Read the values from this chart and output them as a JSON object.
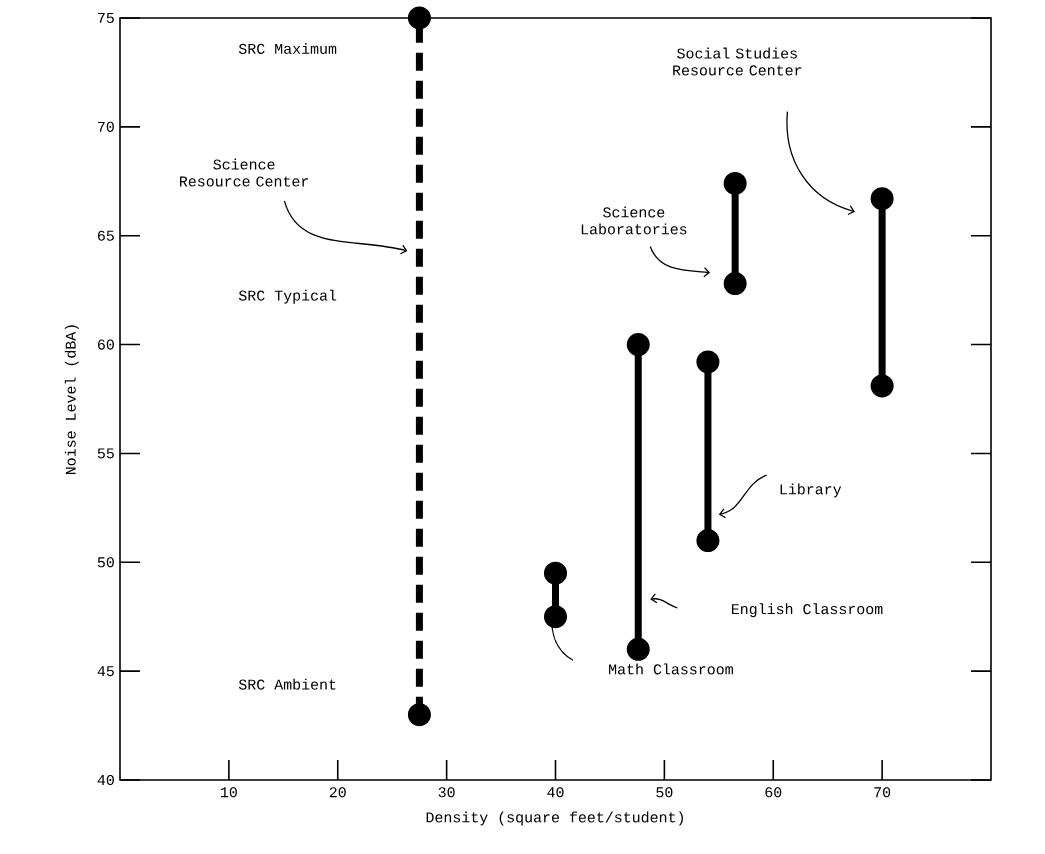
{
  "chart_data": {
    "type": "line",
    "xlabel": "Density (square feet/student)",
    "ylabel": "Noise Level (dBA)",
    "xlim": [
      0,
      80
    ],
    "ylim": [
      40,
      75
    ],
    "xticks": [
      10,
      20,
      30,
      40,
      50,
      60,
      70
    ],
    "yticks": [
      40,
      45,
      50,
      55,
      60,
      65,
      70,
      75
    ],
    "marker": "circle",
    "series": [
      {
        "color": "#000000",
        "line_style": "dashed",
        "x": [
          27.5,
          27.5
        ],
        "values": [
          43,
          75
        ]
      },
      {
        "color": "#000000",
        "line_style": "solid",
        "x": [
          40,
          40
        ],
        "values": [
          47.5,
          49.5
        ]
      },
      {
        "color": "#000000",
        "line_style": "solid",
        "x": [
          47.6,
          47.6
        ],
        "values": [
          46,
          60
        ]
      },
      {
        "color": "#000000",
        "line_style": "solid",
        "x": [
          54,
          54
        ],
        "values": [
          51,
          59.2
        ]
      },
      {
        "color": "#000000",
        "line_style": "solid",
        "x": [
          56.5,
          56.5
        ],
        "values": [
          62.8,
          67.4
        ]
      },
      {
        "color": "#000000",
        "line_style": "solid",
        "x": [
          70,
          70
        ],
        "values": [
          58.1,
          66.7
        ]
      }
    ],
    "annotations": [
      "SRC Maximum",
      "SRC Typical",
      "SRC Ambient",
      "Science Resource Center",
      "Science Laboratories",
      "Social Studies Resource Center",
      "Library",
      "English Classroom",
      "Math Classroom"
    ]
  }
}
